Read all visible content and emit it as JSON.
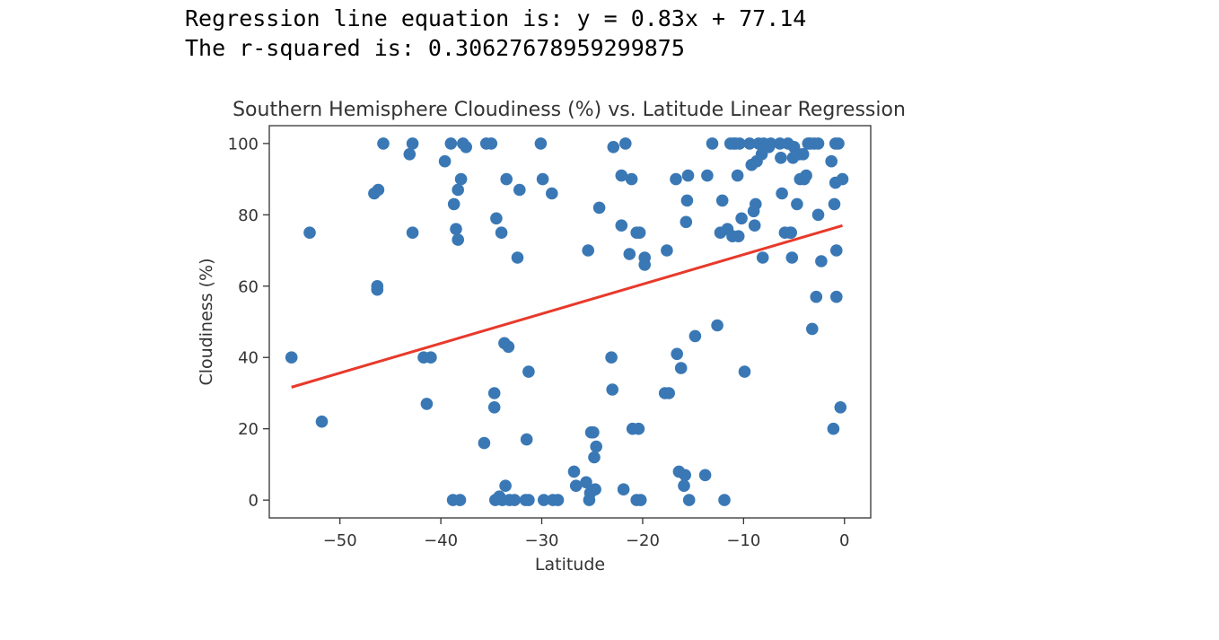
{
  "output": {
    "equation_line": "Regression line equation is: y = 0.83x + 77.14",
    "rsquared_line": "The r-squared is: 0.30627678959299875"
  },
  "chart_data": {
    "type": "scatter",
    "title": "Southern Hemisphere Cloudiness (%) vs. Latitude Linear Regression",
    "xlabel": "Latitude",
    "ylabel": "Cloudiness (%)",
    "xlim": [
      -57,
      2.6
    ],
    "ylim": [
      -5,
      105
    ],
    "xticks": [
      -50,
      -40,
      -30,
      -20,
      -10,
      0
    ],
    "xtick_labels": [
      "−50",
      "−40",
      "−30",
      "−20",
      "−10",
      "0"
    ],
    "yticks": [
      0,
      20,
      40,
      60,
      80,
      100
    ],
    "ytick_labels": [
      "0",
      "20",
      "40",
      "60",
      "80",
      "100"
    ],
    "grid": false,
    "legend": "none",
    "colors": {
      "points": "#3a78b5",
      "regression": "#e8392b",
      "axes": "#333333",
      "text": "#333333"
    },
    "regression": {
      "slope": 0.83,
      "intercept": 77.14,
      "x_range": [
        -54.8,
        -0.2
      ]
    },
    "points": [
      [
        -54.8,
        40
      ],
      [
        -53.0,
        75
      ],
      [
        -51.8,
        22
      ],
      [
        -46.6,
        86
      ],
      [
        -46.2,
        87
      ],
      [
        -46.3,
        60
      ],
      [
        -46.3,
        59
      ],
      [
        -45.7,
        100
      ],
      [
        -43.1,
        97
      ],
      [
        -42.8,
        100
      ],
      [
        -42.8,
        75
      ],
      [
        -41.7,
        40
      ],
      [
        -41.0,
        40
      ],
      [
        -41.4,
        27
      ],
      [
        -39.6,
        95
      ],
      [
        -39.0,
        100
      ],
      [
        -38.7,
        83
      ],
      [
        -38.5,
        76
      ],
      [
        -38.3,
        73
      ],
      [
        -38.3,
        87
      ],
      [
        -38.0,
        90
      ],
      [
        -37.8,
        100
      ],
      [
        -37.5,
        99
      ],
      [
        -38.8,
        0
      ],
      [
        -38.1,
        0
      ],
      [
        -35.7,
        16
      ],
      [
        -35.5,
        100
      ],
      [
        -35.0,
        100
      ],
      [
        -34.5,
        79
      ],
      [
        -34.0,
        75
      ],
      [
        -34.7,
        30
      ],
      [
        -34.7,
        26
      ],
      [
        -34.6,
        0
      ],
      [
        -34.2,
        1
      ],
      [
        -33.9,
        0
      ],
      [
        -33.7,
        44
      ],
      [
        -33.6,
        4
      ],
      [
        -33.3,
        43
      ],
      [
        -33.2,
        0
      ],
      [
        -33.5,
        90
      ],
      [
        -32.7,
        0
      ],
      [
        -32.4,
        68
      ],
      [
        -32.2,
        87
      ],
      [
        -31.5,
        17
      ],
      [
        -31.3,
        36
      ],
      [
        -31.6,
        0
      ],
      [
        -31.3,
        0
      ],
      [
        -30.1,
        100
      ],
      [
        -29.9,
        90
      ],
      [
        -29.8,
        0
      ],
      [
        -29.0,
        86
      ],
      [
        -28.9,
        0
      ],
      [
        -28.4,
        0
      ],
      [
        -26.8,
        8
      ],
      [
        -26.6,
        4
      ],
      [
        -25.6,
        5
      ],
      [
        -25.4,
        70
      ],
      [
        -25.3,
        0
      ],
      [
        -25.2,
        2
      ],
      [
        -25.1,
        19
      ],
      [
        -24.9,
        19
      ],
      [
        -24.8,
        12
      ],
      [
        -24.7,
        3
      ],
      [
        -24.6,
        15
      ],
      [
        -24.3,
        82
      ],
      [
        -23.1,
        40
      ],
      [
        -23.0,
        31
      ],
      [
        -22.9,
        99
      ],
      [
        -22.1,
        91
      ],
      [
        -22.1,
        77
      ],
      [
        -21.9,
        3
      ],
      [
        -21.7,
        100
      ],
      [
        -21.3,
        69
      ],
      [
        -21.1,
        90
      ],
      [
        -21.0,
        20
      ],
      [
        -20.6,
        75
      ],
      [
        -20.6,
        0
      ],
      [
        -20.4,
        20
      ],
      [
        -20.3,
        75
      ],
      [
        -20.2,
        0
      ],
      [
        -19.8,
        68
      ],
      [
        -19.8,
        66
      ],
      [
        -17.8,
        30
      ],
      [
        -17.6,
        70
      ],
      [
        -17.4,
        30
      ],
      [
        -16.7,
        90
      ],
      [
        -16.6,
        41
      ],
      [
        -16.4,
        8
      ],
      [
        -16.2,
        37
      ],
      [
        -15.9,
        4
      ],
      [
        -15.8,
        7
      ],
      [
        -15.7,
        78
      ],
      [
        -15.6,
        84
      ],
      [
        -15.5,
        91
      ],
      [
        -15.4,
        0
      ],
      [
        -14.8,
        46
      ],
      [
        -13.8,
        7
      ],
      [
        -13.6,
        91
      ],
      [
        -13.1,
        100
      ],
      [
        -12.6,
        49
      ],
      [
        -12.3,
        75
      ],
      [
        -12.1,
        84
      ],
      [
        -11.9,
        0
      ],
      [
        -11.6,
        76
      ],
      [
        -11.3,
        100
      ],
      [
        -11.1,
        74
      ],
      [
        -11.0,
        100
      ],
      [
        -10.8,
        100
      ],
      [
        -10.6,
        91
      ],
      [
        -10.5,
        74
      ],
      [
        -10.4,
        100
      ],
      [
        -10.2,
        79
      ],
      [
        -9.9,
        36
      ],
      [
        -9.4,
        100
      ],
      [
        -9.2,
        94
      ],
      [
        -9.0,
        81
      ],
      [
        -8.9,
        77
      ],
      [
        -8.8,
        83
      ],
      [
        -8.7,
        95
      ],
      [
        -8.5,
        100
      ],
      [
        -8.2,
        97
      ],
      [
        -8.1,
        68
      ],
      [
        -8.0,
        100
      ],
      [
        -7.5,
        99
      ],
      [
        -7.3,
        100
      ],
      [
        -6.4,
        100
      ],
      [
        -6.3,
        96
      ],
      [
        -6.2,
        86
      ],
      [
        -5.9,
        75
      ],
      [
        -5.6,
        100
      ],
      [
        -5.4,
        75
      ],
      [
        -5.3,
        75
      ],
      [
        -5.2,
        68
      ],
      [
        -5.1,
        96
      ],
      [
        -5.0,
        99
      ],
      [
        -4.7,
        83
      ],
      [
        -4.5,
        97
      ],
      [
        -4.4,
        90
      ],
      [
        -4.1,
        97
      ],
      [
        -4.0,
        90
      ],
      [
        -3.8,
        91
      ],
      [
        -3.6,
        100
      ],
      [
        -3.4,
        100
      ],
      [
        -3.2,
        48
      ],
      [
        -3.0,
        100
      ],
      [
        -2.8,
        57
      ],
      [
        -2.6,
        100
      ],
      [
        -2.6,
        80
      ],
      [
        -2.3,
        67
      ],
      [
        -1.3,
        95
      ],
      [
        -1.1,
        20
      ],
      [
        -1.0,
        83
      ],
      [
        -0.9,
        89
      ],
      [
        -0.9,
        100
      ],
      [
        -0.8,
        70
      ],
      [
        -0.8,
        57
      ],
      [
        -0.6,
        100
      ],
      [
        -0.4,
        26
      ],
      [
        -0.2,
        90
      ]
    ]
  }
}
